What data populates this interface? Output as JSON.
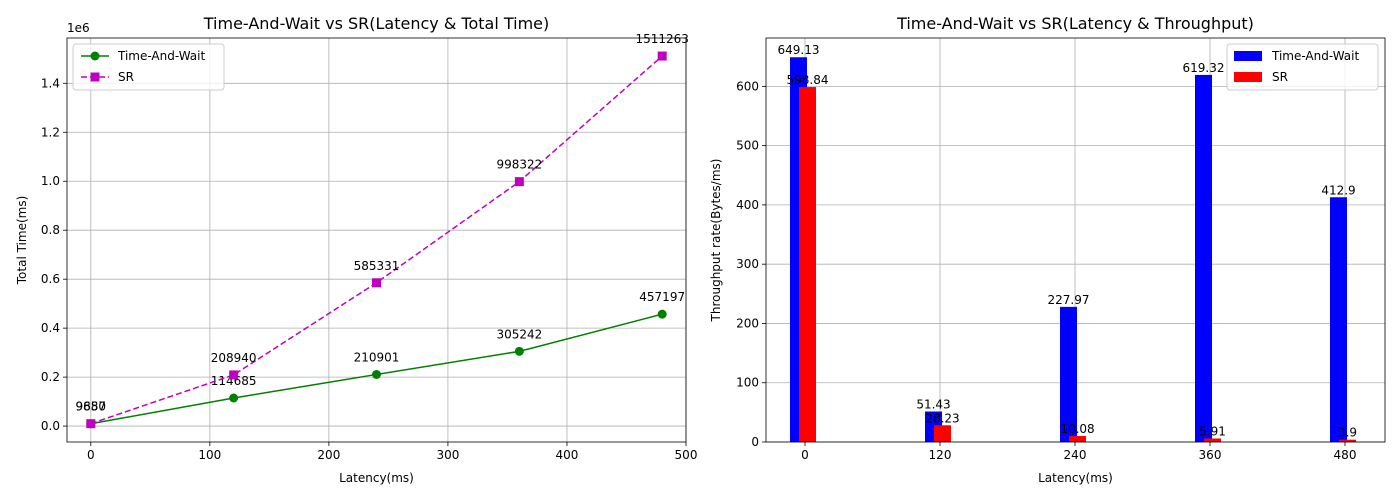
{
  "chart_data": [
    {
      "type": "line",
      "title": "Time-And-Wait vs SR(Latency & Total Time)",
      "xlabel": "Latency(ms)",
      "ylabel": "Total Time(ms)",
      "y_scale_label": "1e6",
      "xlim": [
        -20,
        500
      ],
      "ylim": [
        -0.065,
        1.585
      ],
      "x_ticks": [
        0,
        100,
        200,
        300,
        400,
        500
      ],
      "x_tick_labels": [
        "0",
        "100",
        "200",
        "300",
        "400",
        "500"
      ],
      "y_ticks": [
        0.0,
        0.2,
        0.4,
        0.6,
        0.8,
        1.0,
        1.2,
        1.4
      ],
      "y_tick_labels": [
        "0.0",
        "0.2",
        "0.4",
        "0.6",
        "0.8",
        "1.0",
        "1.2",
        "1.4"
      ],
      "grid": true,
      "legend_position": "upper-left",
      "series": [
        {
          "name": "Time-And-Wait",
          "color": "#008000",
          "marker": "circle",
          "line_style": "solid",
          "x": [
            0,
            120,
            240,
            360,
            480
          ],
          "values": [
            9650,
            114685,
            210901,
            305242,
            457197
          ],
          "labels": [
            "9650",
            "114685",
            "210901",
            "305242",
            "457197"
          ]
        },
        {
          "name": "SR",
          "color": "#bf00bf",
          "marker": "square",
          "line_style": "dashed",
          "x": [
            0,
            120,
            240,
            360,
            480
          ],
          "values": [
            9887,
            208940,
            585331,
            998322,
            1511263
          ],
          "labels": [
            "9887",
            "208940",
            "585331",
            "998322",
            "1511263"
          ]
        }
      ]
    },
    {
      "type": "bar",
      "title": "Time-And-Wait vs SR(Latency & Throughput)",
      "xlabel": "Latency(ms)",
      "ylabel": "Throughput rate(Bytes/ms)",
      "categories": [
        "0",
        "120",
        "240",
        "360",
        "480"
      ],
      "ylim": [
        0,
        681.6
      ],
      "y_ticks": [
        0,
        100,
        200,
        300,
        400,
        500,
        600
      ],
      "y_tick_labels": [
        "0",
        "100",
        "200",
        "300",
        "400",
        "500",
        "600"
      ],
      "grid": true,
      "legend_position": "upper-right",
      "series": [
        {
          "name": "Time-And-Wait",
          "color": "#0000ff",
          "values": [
            649.13,
            51.43,
            227.97,
            619.32,
            412.9
          ],
          "labels": [
            "649.13",
            "51.43",
            "227.97",
            "619.32",
            "412.9"
          ]
        },
        {
          "name": "SR",
          "color": "#ff0000",
          "values": [
            598.84,
            28.23,
            10.08,
            5.91,
            3.9
          ],
          "labels": [
            "598.84",
            "28.23",
            "10.08",
            "5.91",
            "3.9"
          ]
        }
      ]
    }
  ]
}
